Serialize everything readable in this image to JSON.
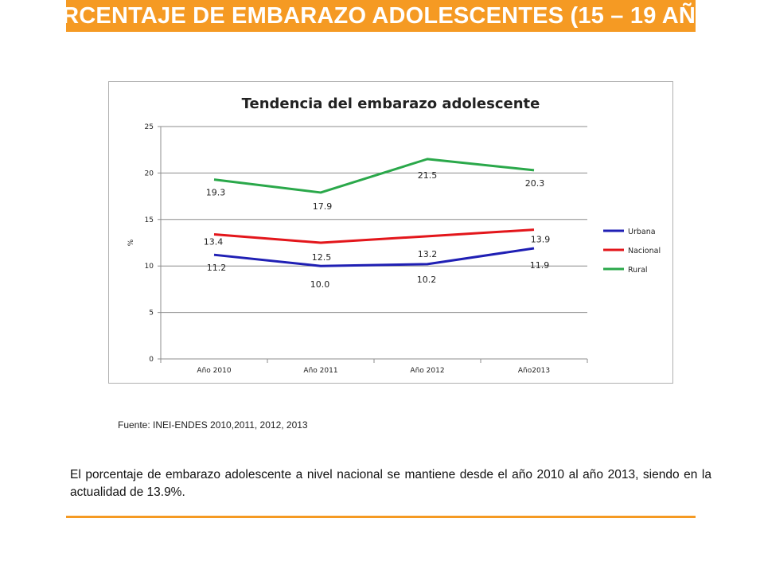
{
  "header": {
    "title": "RCENTAJE DE EMBARAZO ADOLESCENTES (15 – 19 AÑ",
    "color": "#f59a23"
  },
  "chart_data": {
    "type": "line",
    "title": "Tendencia del embarazo adolescente",
    "xlabel": "",
    "ylabel": "%",
    "categories": [
      "Año 2010",
      "Año 2011",
      "Año 2012",
      "Año2013"
    ],
    "ylim": [
      0,
      25
    ],
    "yticks": [
      0,
      5,
      10,
      15,
      20,
      25
    ],
    "grid": true,
    "legend_position": "right",
    "series": [
      {
        "name": "Urbana",
        "color": "#1f1fb4",
        "values": [
          11.2,
          10.0,
          10.2,
          11.9
        ]
      },
      {
        "name": "Nacional",
        "color": "#e3161b",
        "values": [
          13.4,
          12.5,
          13.2,
          13.9
        ]
      },
      {
        "name": "Rural",
        "color": "#2aa84a",
        "values": [
          19.3,
          17.9,
          21.5,
          20.3
        ]
      }
    ],
    "data_labels": [
      {
        "text": "19.3"
      },
      {
        "text": "17.9"
      },
      {
        "text": "21.5"
      },
      {
        "text": "20.3"
      },
      {
        "text": "13.4"
      },
      {
        "text": "12.5"
      },
      {
        "text": "13.2"
      },
      {
        "text": "13.9"
      },
      {
        "text": "11.2"
      },
      {
        "text": "10.0"
      },
      {
        "text": "10.2"
      },
      {
        "text": "11.9"
      }
    ]
  },
  "source": "Fuente: INEI-ENDES 2010,2011, 2012, 2013",
  "summary": "El porcentaje de embarazo adolescente a nivel nacional se mantiene desde el año 2010 al año 2013, siendo en la actualidad de 13.9%."
}
